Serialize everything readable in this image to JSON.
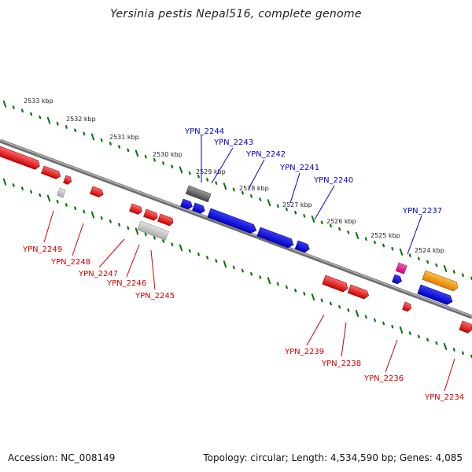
{
  "title": "Yersinia pestis Nepal516, complete genome",
  "footer": {
    "accession": "Accession: NC_008149",
    "topology": "Topology: circular; Length: 4,534,590 bp; Genes: 4,085"
  },
  "colors": {
    "forward": "#0000ee",
    "reverse": "#ee0000",
    "gray": "#777777",
    "light_gray": "#bbbbbb",
    "magenta": "#ee0088",
    "orange": "#ff9900",
    "tick": "#007700",
    "backbone": "#888888"
  },
  "kbp_ticks": [
    "2533 kbp",
    "2532 kbp",
    "2531 kbp",
    "2530 kbp",
    "2529 kbp",
    "2528 kbp",
    "2527 kbp",
    "2526 kbp",
    "2525 kbp",
    "2524 kbp"
  ],
  "forward_genes": [
    "YPN_2244",
    "YPN_2243",
    "YPN_2242",
    "YPN_2241",
    "YPN_2240",
    "YPN_2237"
  ],
  "reverse_genes": [
    "YPN_2249",
    "YPN_2248",
    "YPN_2247",
    "YPN_2246",
    "YPN_2245",
    "YPN_2239",
    "YPN_2238",
    "YPN_2236",
    "YPN_2234"
  ]
}
